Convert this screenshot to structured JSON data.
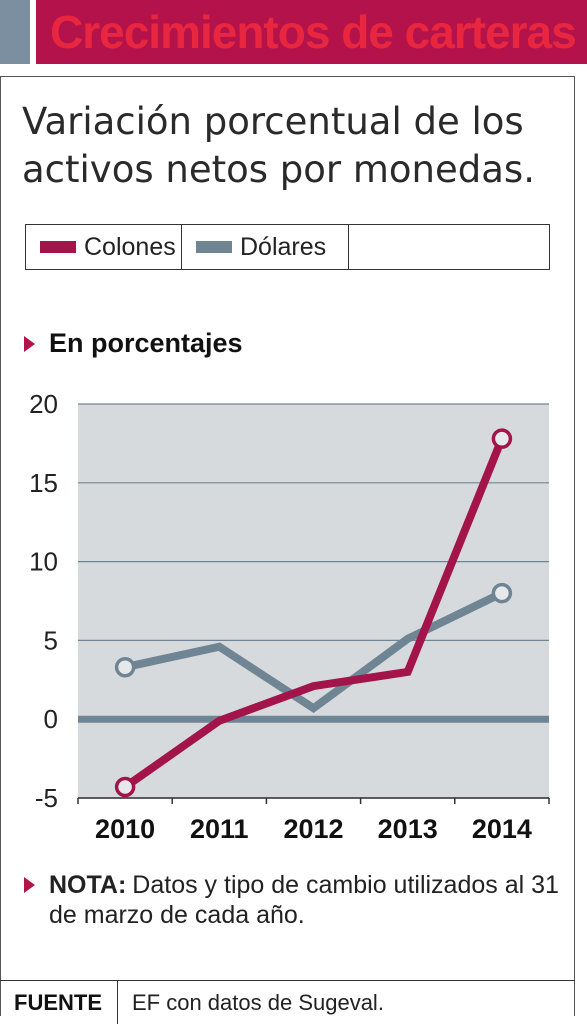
{
  "header": {
    "title": "Crecimientos de carteras"
  },
  "subtitle": "Variación porcentual de los activos netos por monedas.",
  "unit_label": "En porcentajes",
  "note": {
    "label": "NOTA:",
    "text": "Datos y tipo de cambio utilizados al 31 de marzo de cada año."
  },
  "footer": {
    "label": "FUENTE",
    "text": "EF con datos de Sugeval."
  },
  "colors": {
    "accent": "#b3134a",
    "title_text": "#e8263f",
    "colones": "#a3154a",
    "dolares": "#6f8594",
    "plot_bg": "#d7dadd",
    "header_side": "#7c8fa0"
  },
  "chart_data": {
    "type": "line",
    "title": "",
    "xlabel": "",
    "ylabel": "En porcentajes",
    "categories": [
      "2010",
      "2011",
      "2012",
      "2013",
      "2014"
    ],
    "ylim": [
      -5,
      20
    ],
    "yticks": [
      20,
      15,
      10,
      5,
      0,
      -5
    ],
    "grid": true,
    "legend_position": "top",
    "series": [
      {
        "name": "Colones",
        "values": [
          -4.3,
          -0.1,
          2.1,
          3.0,
          17.8
        ],
        "color": "#a3154a"
      },
      {
        "name": "Dólares",
        "values": [
          3.3,
          4.6,
          0.7,
          5.1,
          8.0
        ],
        "color": "#6f8594"
      }
    ]
  }
}
